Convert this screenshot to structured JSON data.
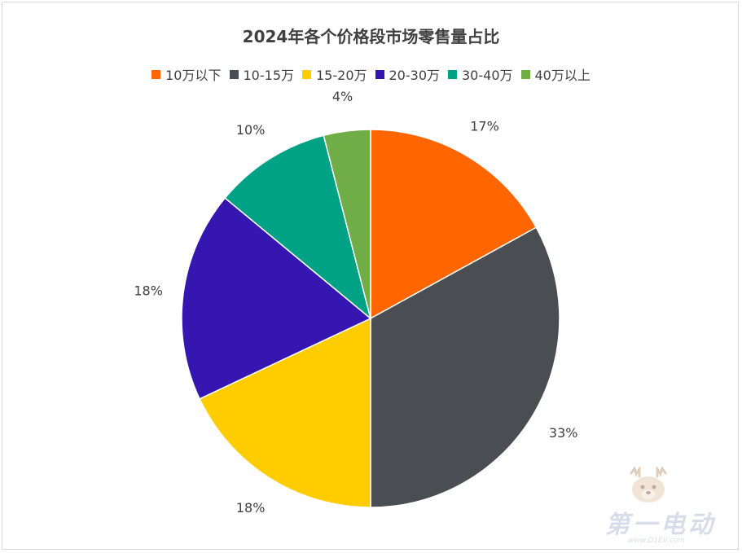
{
  "chart_data": {
    "type": "pie",
    "title": "2024年各个价格段市场零售量占比",
    "legend_position": "top",
    "categories": [
      "10万以下",
      "10-15万",
      "15-20万",
      "20-30万",
      "30-40万",
      "40万以上"
    ],
    "values": [
      17,
      33,
      18,
      18,
      10,
      4
    ],
    "data_labels": [
      "17%",
      "33%",
      "18%",
      "18%",
      "10%",
      "4%"
    ],
    "colors": [
      "#ff6600",
      "#4a4e52",
      "#ffcc00",
      "#3616b0",
      "#00a286",
      "#70ad47"
    ]
  },
  "watermark": {
    "text": "第一电动",
    "url": "www.D1EV.com",
    "icon": "deer-mascot-icon"
  }
}
